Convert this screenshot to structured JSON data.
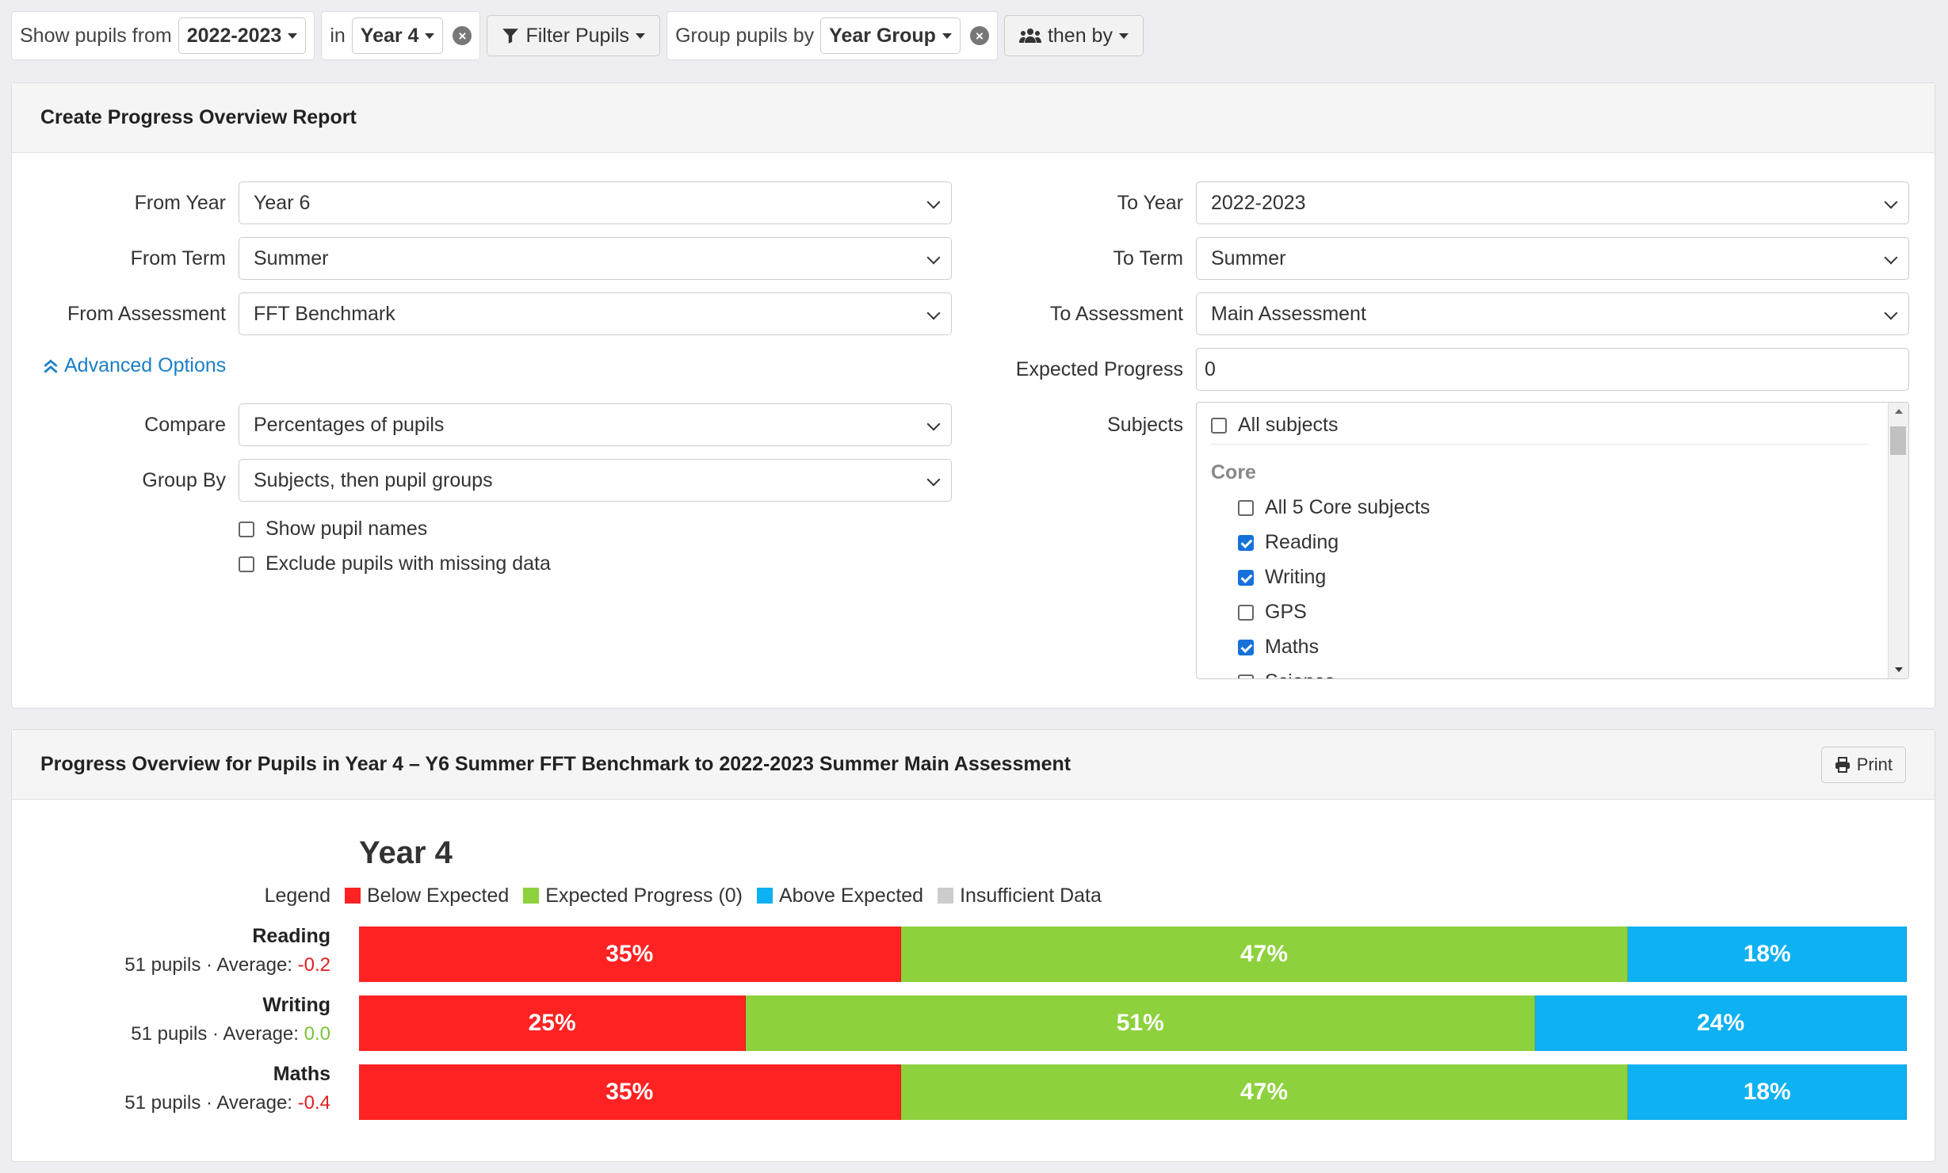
{
  "filterbar": {
    "show_label": "Show pupils from",
    "year_value": "2022-2023",
    "in_label": "in",
    "class_value": "Year 4",
    "filter_label": "Filter Pupils",
    "group_label": "Group pupils by",
    "group_value": "Year Group",
    "then_label": "then by"
  },
  "form": {
    "title": "Create Progress Overview Report",
    "from_year_label": "From Year",
    "from_year_value": "Year 6",
    "from_term_label": "From Term",
    "from_term_value": "Summer",
    "from_assessment_label": "From Assessment",
    "from_assessment_value": "FFT Benchmark",
    "to_year_label": "To Year",
    "to_year_value": "2022-2023",
    "to_term_label": "To Term",
    "to_term_value": "Summer",
    "to_assessment_label": "To Assessment",
    "to_assessment_value": "Main Assessment",
    "advanced_label": "Advanced Options",
    "expected_label": "Expected Progress",
    "expected_value": "0",
    "compare_label": "Compare",
    "compare_value": "Percentages of pupils",
    "groupby_label": "Group By",
    "groupby_value": "Subjects, then pupil groups",
    "show_names_label": "Show pupil names",
    "exclude_label": "Exclude pupils with missing data",
    "subjects_label": "Subjects",
    "subjects": {
      "all_label": "All subjects",
      "core_heading": "Core",
      "items": [
        {
          "label": "All 5 Core subjects",
          "checked": false
        },
        {
          "label": "Reading",
          "checked": true
        },
        {
          "label": "Writing",
          "checked": true
        },
        {
          "label": "GPS",
          "checked": false
        },
        {
          "label": "Maths",
          "checked": true
        },
        {
          "label": "Science",
          "checked": false
        }
      ]
    }
  },
  "report": {
    "title": "Progress Overview for Pupils in Year 4 – Y6 Summer FFT Benchmark to 2022-2023 Summer Main Assessment",
    "print_label": "Print"
  },
  "chart_data": {
    "type": "bar",
    "title": "Year 4",
    "legend_label": "Legend",
    "legend": [
      {
        "name": "Below Expected",
        "color": "#ff2222"
      },
      {
        "name": "Expected Progress (0)",
        "color": "#8dd13c"
      },
      {
        "name": "Above Expected",
        "color": "#0eb1f2"
      },
      {
        "name": "Insufficient Data",
        "color": "#cccccc"
      }
    ],
    "categories": [
      "Reading",
      "Writing",
      "Maths"
    ],
    "rows": [
      {
        "name": "Reading",
        "pupils": "51 pupils",
        "avg_label": "Average:",
        "average": "-0.2",
        "avg_color": "#e02020",
        "values": [
          {
            "label": "35%",
            "value": 35
          },
          {
            "label": "47%",
            "value": 47
          },
          {
            "label": "18%",
            "value": 18
          }
        ]
      },
      {
        "name": "Writing",
        "pupils": "51 pupils",
        "avg_label": "Average:",
        "average": "0.0",
        "avg_color": "#7cc23a",
        "values": [
          {
            "label": "25%",
            "value": 25
          },
          {
            "label": "51%",
            "value": 51
          },
          {
            "label": "24%",
            "value": 24
          }
        ]
      },
      {
        "name": "Maths",
        "pupils": "51 pupils",
        "avg_label": "Average:",
        "average": "-0.4",
        "avg_color": "#e02020",
        "values": [
          {
            "label": "35%",
            "value": 35
          },
          {
            "label": "47%",
            "value": 47
          },
          {
            "label": "18%",
            "value": 18
          }
        ]
      }
    ]
  }
}
